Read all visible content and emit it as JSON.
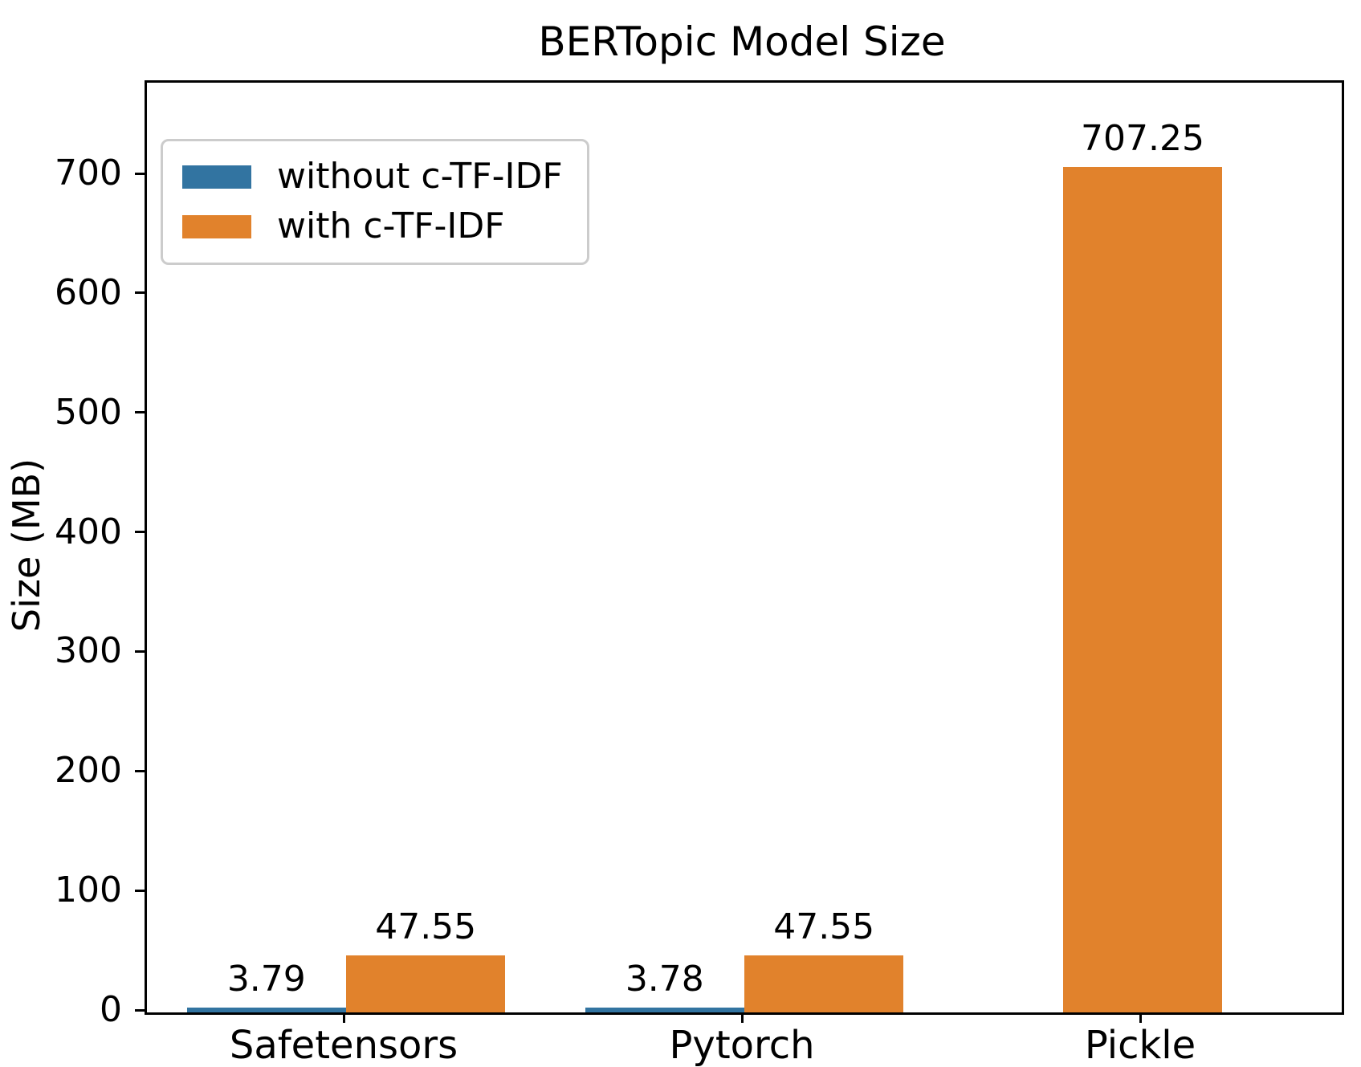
{
  "title": "BERTopic Model Size",
  "colors": {
    "without_ctfidf": "#3274a1",
    "with_ctfidf": "#e1822c",
    "axis": "#000000",
    "legend_border": "#cccccc",
    "background": "#ffffff"
  },
  "legend": {
    "position": "upper left",
    "items": [
      {
        "label": "without c-TF-IDF",
        "color": "#3274a1"
      },
      {
        "label": "with c-TF-IDF",
        "color": "#e1822c"
      }
    ]
  },
  "chart_data": {
    "type": "bar",
    "title": "BERTopic Model Size",
    "xlabel": "",
    "ylabel": "Size (MB)",
    "categories": [
      "Safetensors",
      "Pytorch",
      "Pickle"
    ],
    "series": [
      {
        "name": "without c-TF-IDF",
        "color": "#3274a1",
        "values": [
          3.79,
          3.78,
          null
        ]
      },
      {
        "name": "with c-TF-IDF",
        "color": "#e1822c",
        "values": [
          47.55,
          47.55,
          707.25
        ]
      }
    ],
    "bar_labels": [
      [
        "3.79",
        "3.78",
        null
      ],
      [
        "47.55",
        "47.55",
        "707.25"
      ]
    ],
    "ylim": [
      0,
      778
    ],
    "yticks": [
      0,
      100,
      200,
      300,
      400,
      500,
      600,
      700
    ],
    "grid": false,
    "group_width_fraction": 0.8,
    "legend_position": "upper left"
  }
}
